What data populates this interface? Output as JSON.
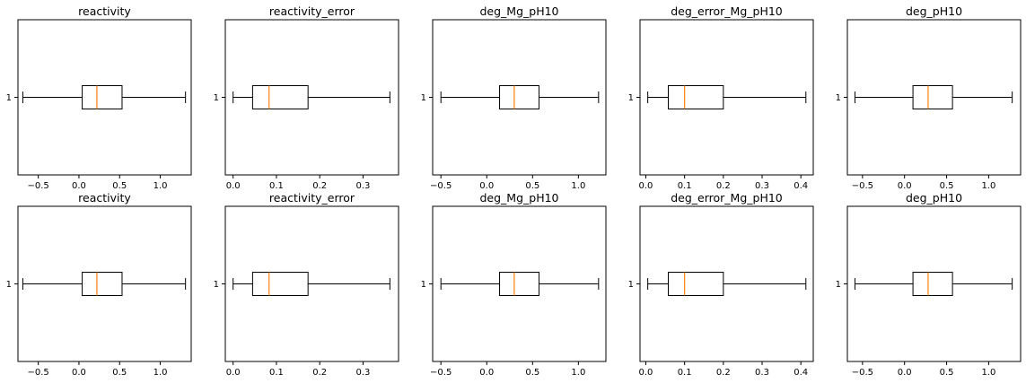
{
  "colors": {
    "box": "#000000",
    "median": "#ff7f0e",
    "frame": "#000000",
    "background": "#ffffff"
  },
  "chart_data": [
    {
      "type": "box",
      "title": "reactivity",
      "category_ticks": [
        "1"
      ],
      "xlim": [
        -0.75,
        1.38
      ],
      "xticks": [
        -0.5,
        0.0,
        0.5,
        1.0
      ],
      "xtick_labels": [
        "−0.5",
        "0.0",
        "0.5",
        "1.0"
      ],
      "boxes": [
        {
          "category": "1",
          "whisker_low": -0.69,
          "q1": 0.04,
          "median": 0.22,
          "q3": 0.53,
          "whisker_high": 1.31
        }
      ]
    },
    {
      "type": "box",
      "title": "reactivity_error",
      "category_ticks": [
        "1"
      ],
      "xlim": [
        -0.018,
        0.382
      ],
      "xticks": [
        0.0,
        0.1,
        0.2,
        0.3
      ],
      "xtick_labels": [
        "0.0",
        "0.1",
        "0.2",
        "0.3"
      ],
      "boxes": [
        {
          "category": "1",
          "whisker_low": 0.0,
          "q1": 0.045,
          "median": 0.083,
          "q3": 0.173,
          "whisker_high": 0.362
        }
      ]
    },
    {
      "type": "box",
      "title": "deg_Mg_pH10",
      "category_ticks": [
        "1"
      ],
      "xlim": [
        -0.59,
        1.3
      ],
      "xticks": [
        -0.5,
        0.0,
        0.5,
        1.0
      ],
      "xtick_labels": [
        "−0.5",
        "0.0",
        "0.5",
        "1.0"
      ],
      "boxes": [
        {
          "category": "1",
          "whisker_low": -0.5,
          "q1": 0.14,
          "median": 0.3,
          "q3": 0.57,
          "whisker_high": 1.22
        }
      ]
    },
    {
      "type": "box",
      "title": "deg_error_Mg_pH10",
      "category_ticks": [
        "1"
      ],
      "xlim": [
        -0.015,
        0.432
      ],
      "xticks": [
        0.0,
        0.1,
        0.2,
        0.3,
        0.4
      ],
      "xtick_labels": [
        "0.0",
        "0.1",
        "0.2",
        "0.3",
        "0.4"
      ],
      "boxes": [
        {
          "category": "1",
          "whisker_low": 0.005,
          "q1": 0.058,
          "median": 0.1,
          "q3": 0.2,
          "whisker_high": 0.413
        }
      ]
    },
    {
      "type": "box",
      "title": "deg_pH10",
      "category_ticks": [
        "1"
      ],
      "xlim": [
        -0.68,
        1.38
      ],
      "xticks": [
        -0.5,
        0.0,
        0.5,
        1.0
      ],
      "xtick_labels": [
        "−0.5",
        "0.0",
        "0.5",
        "1.0"
      ],
      "boxes": [
        {
          "category": "1",
          "whisker_low": -0.59,
          "q1": 0.1,
          "median": 0.28,
          "q3": 0.57,
          "whisker_high": 1.28
        }
      ]
    },
    {
      "type": "box",
      "title": "reactivity",
      "category_ticks": [
        "1"
      ],
      "xlim": [
        -0.75,
        1.38
      ],
      "xticks": [
        -0.5,
        0.0,
        0.5,
        1.0
      ],
      "xtick_labels": [
        "−0.5",
        "0.0",
        "0.5",
        "1.0"
      ],
      "boxes": [
        {
          "category": "1",
          "whisker_low": -0.69,
          "q1": 0.04,
          "median": 0.22,
          "q3": 0.53,
          "whisker_high": 1.31
        }
      ]
    },
    {
      "type": "box",
      "title": "reactivity_error",
      "category_ticks": [
        "1"
      ],
      "xlim": [
        -0.018,
        0.382
      ],
      "xticks": [
        0.0,
        0.1,
        0.2,
        0.3
      ],
      "xtick_labels": [
        "0.0",
        "0.1",
        "0.2",
        "0.3"
      ],
      "boxes": [
        {
          "category": "1",
          "whisker_low": 0.0,
          "q1": 0.045,
          "median": 0.083,
          "q3": 0.173,
          "whisker_high": 0.362
        }
      ]
    },
    {
      "type": "box",
      "title": "deg_Mg_pH10",
      "category_ticks": [
        "1"
      ],
      "xlim": [
        -0.59,
        1.3
      ],
      "xticks": [
        -0.5,
        0.0,
        0.5,
        1.0
      ],
      "xtick_labels": [
        "−0.5",
        "0.0",
        "0.5",
        "1.0"
      ],
      "boxes": [
        {
          "category": "1",
          "whisker_low": -0.5,
          "q1": 0.14,
          "median": 0.3,
          "q3": 0.57,
          "whisker_high": 1.22
        }
      ]
    },
    {
      "type": "box",
      "title": "deg_error_Mg_pH10",
      "category_ticks": [
        "1"
      ],
      "xlim": [
        -0.015,
        0.432
      ],
      "xticks": [
        0.0,
        0.1,
        0.2,
        0.3,
        0.4
      ],
      "xtick_labels": [
        "0.0",
        "0.1",
        "0.2",
        "0.3",
        "0.4"
      ],
      "boxes": [
        {
          "category": "1",
          "whisker_low": 0.005,
          "q1": 0.058,
          "median": 0.1,
          "q3": 0.2,
          "whisker_high": 0.413
        }
      ]
    },
    {
      "type": "box",
      "title": "deg_pH10",
      "category_ticks": [
        "1"
      ],
      "xlim": [
        -0.68,
        1.38
      ],
      "xticks": [
        -0.5,
        0.0,
        0.5,
        1.0
      ],
      "xtick_labels": [
        "−0.5",
        "0.0",
        "0.5",
        "1.0"
      ],
      "boxes": [
        {
          "category": "1",
          "whisker_low": -0.59,
          "q1": 0.1,
          "median": 0.28,
          "q3": 0.57,
          "whisker_high": 1.28
        }
      ]
    }
  ]
}
